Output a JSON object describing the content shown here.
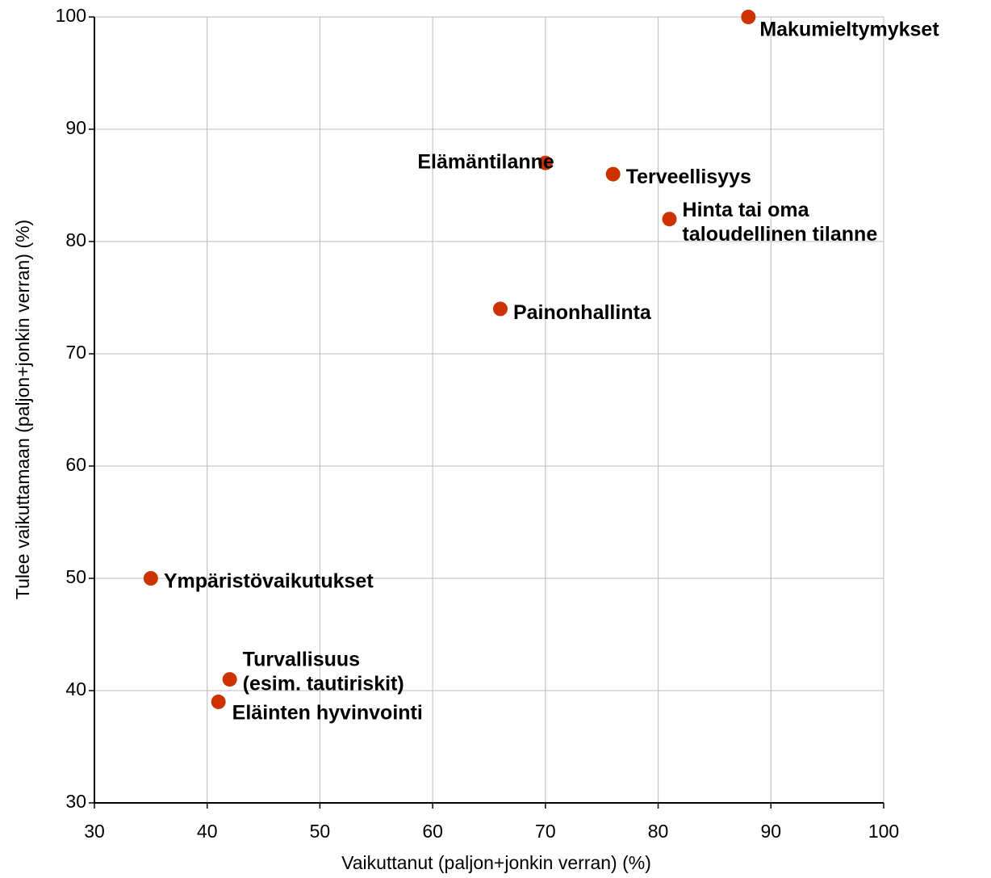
{
  "chart_data": {
    "type": "scatter",
    "x_label": "Vaikuttanut (paljon+jonkin verran) (%)",
    "y_label": "Tulee vaikuttamaan (paljon+jonkin verran) (%)",
    "labels": [
      [
        "Makumieltymykset"
      ],
      [
        "Elämäntilanne"
      ],
      [
        "Terveellisyys"
      ],
      [
        "Hinta tai oma",
        "taloudellinen tilanne"
      ],
      [
        "Painonhallinta"
      ],
      [
        "Ympäristövaikutukset"
      ],
      [
        "Turvallisuus",
        "(esim. tautiriskit)"
      ],
      [
        "Eläinten hyvinvointi"
      ]
    ],
    "x": [
      88,
      70,
      76,
      81,
      66,
      35,
      42,
      41
    ],
    "values": [
      100,
      87,
      86,
      82,
      74,
      50,
      41,
      39
    ],
    "color": "#cc3300",
    "xlim": [
      30,
      100
    ],
    "xticks": [
      30,
      40,
      50,
      60,
      70,
      80,
      90,
      100
    ],
    "ylim": [
      30,
      100
    ],
    "yticks": [
      30,
      40,
      50,
      60,
      70,
      80,
      90,
      100
    ],
    "grid": true
  }
}
